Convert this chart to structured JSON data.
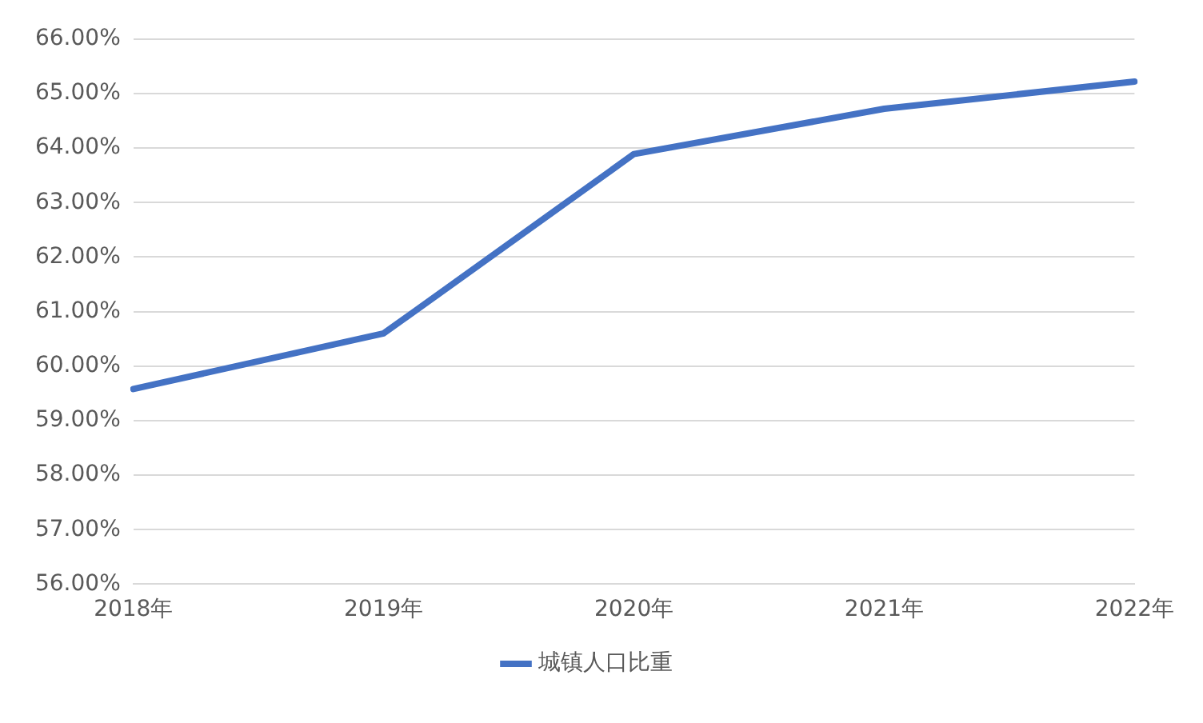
{
  "chart_data": {
    "type": "line",
    "categories": [
      "2018年",
      "2019年",
      "2020年",
      "2021年",
      "2022年"
    ],
    "series": [
      {
        "name": "城镇人口比重",
        "color": "#4472c4",
        "values": [
          59.58,
          60.6,
          63.89,
          64.72,
          65.22
        ]
      }
    ],
    "ylim": [
      56,
      66
    ],
    "yticks": [
      {
        "value": 56,
        "label": "56.00%"
      },
      {
        "value": 57,
        "label": "57.00%"
      },
      {
        "value": 58,
        "label": "58.00%"
      },
      {
        "value": 59,
        "label": "59.00%"
      },
      {
        "value": 60,
        "label": "60.00%"
      },
      {
        "value": 61,
        "label": "61.00%"
      },
      {
        "value": 62,
        "label": "62.00%"
      },
      {
        "value": 63,
        "label": "63.00%"
      },
      {
        "value": 64,
        "label": "64.00%"
      },
      {
        "value": 65,
        "label": "65.00%"
      },
      {
        "value": 66,
        "label": "66.00%"
      }
    ],
    "grid": "y",
    "legend": "bottom",
    "marker": "none",
    "line_style": "solid"
  }
}
